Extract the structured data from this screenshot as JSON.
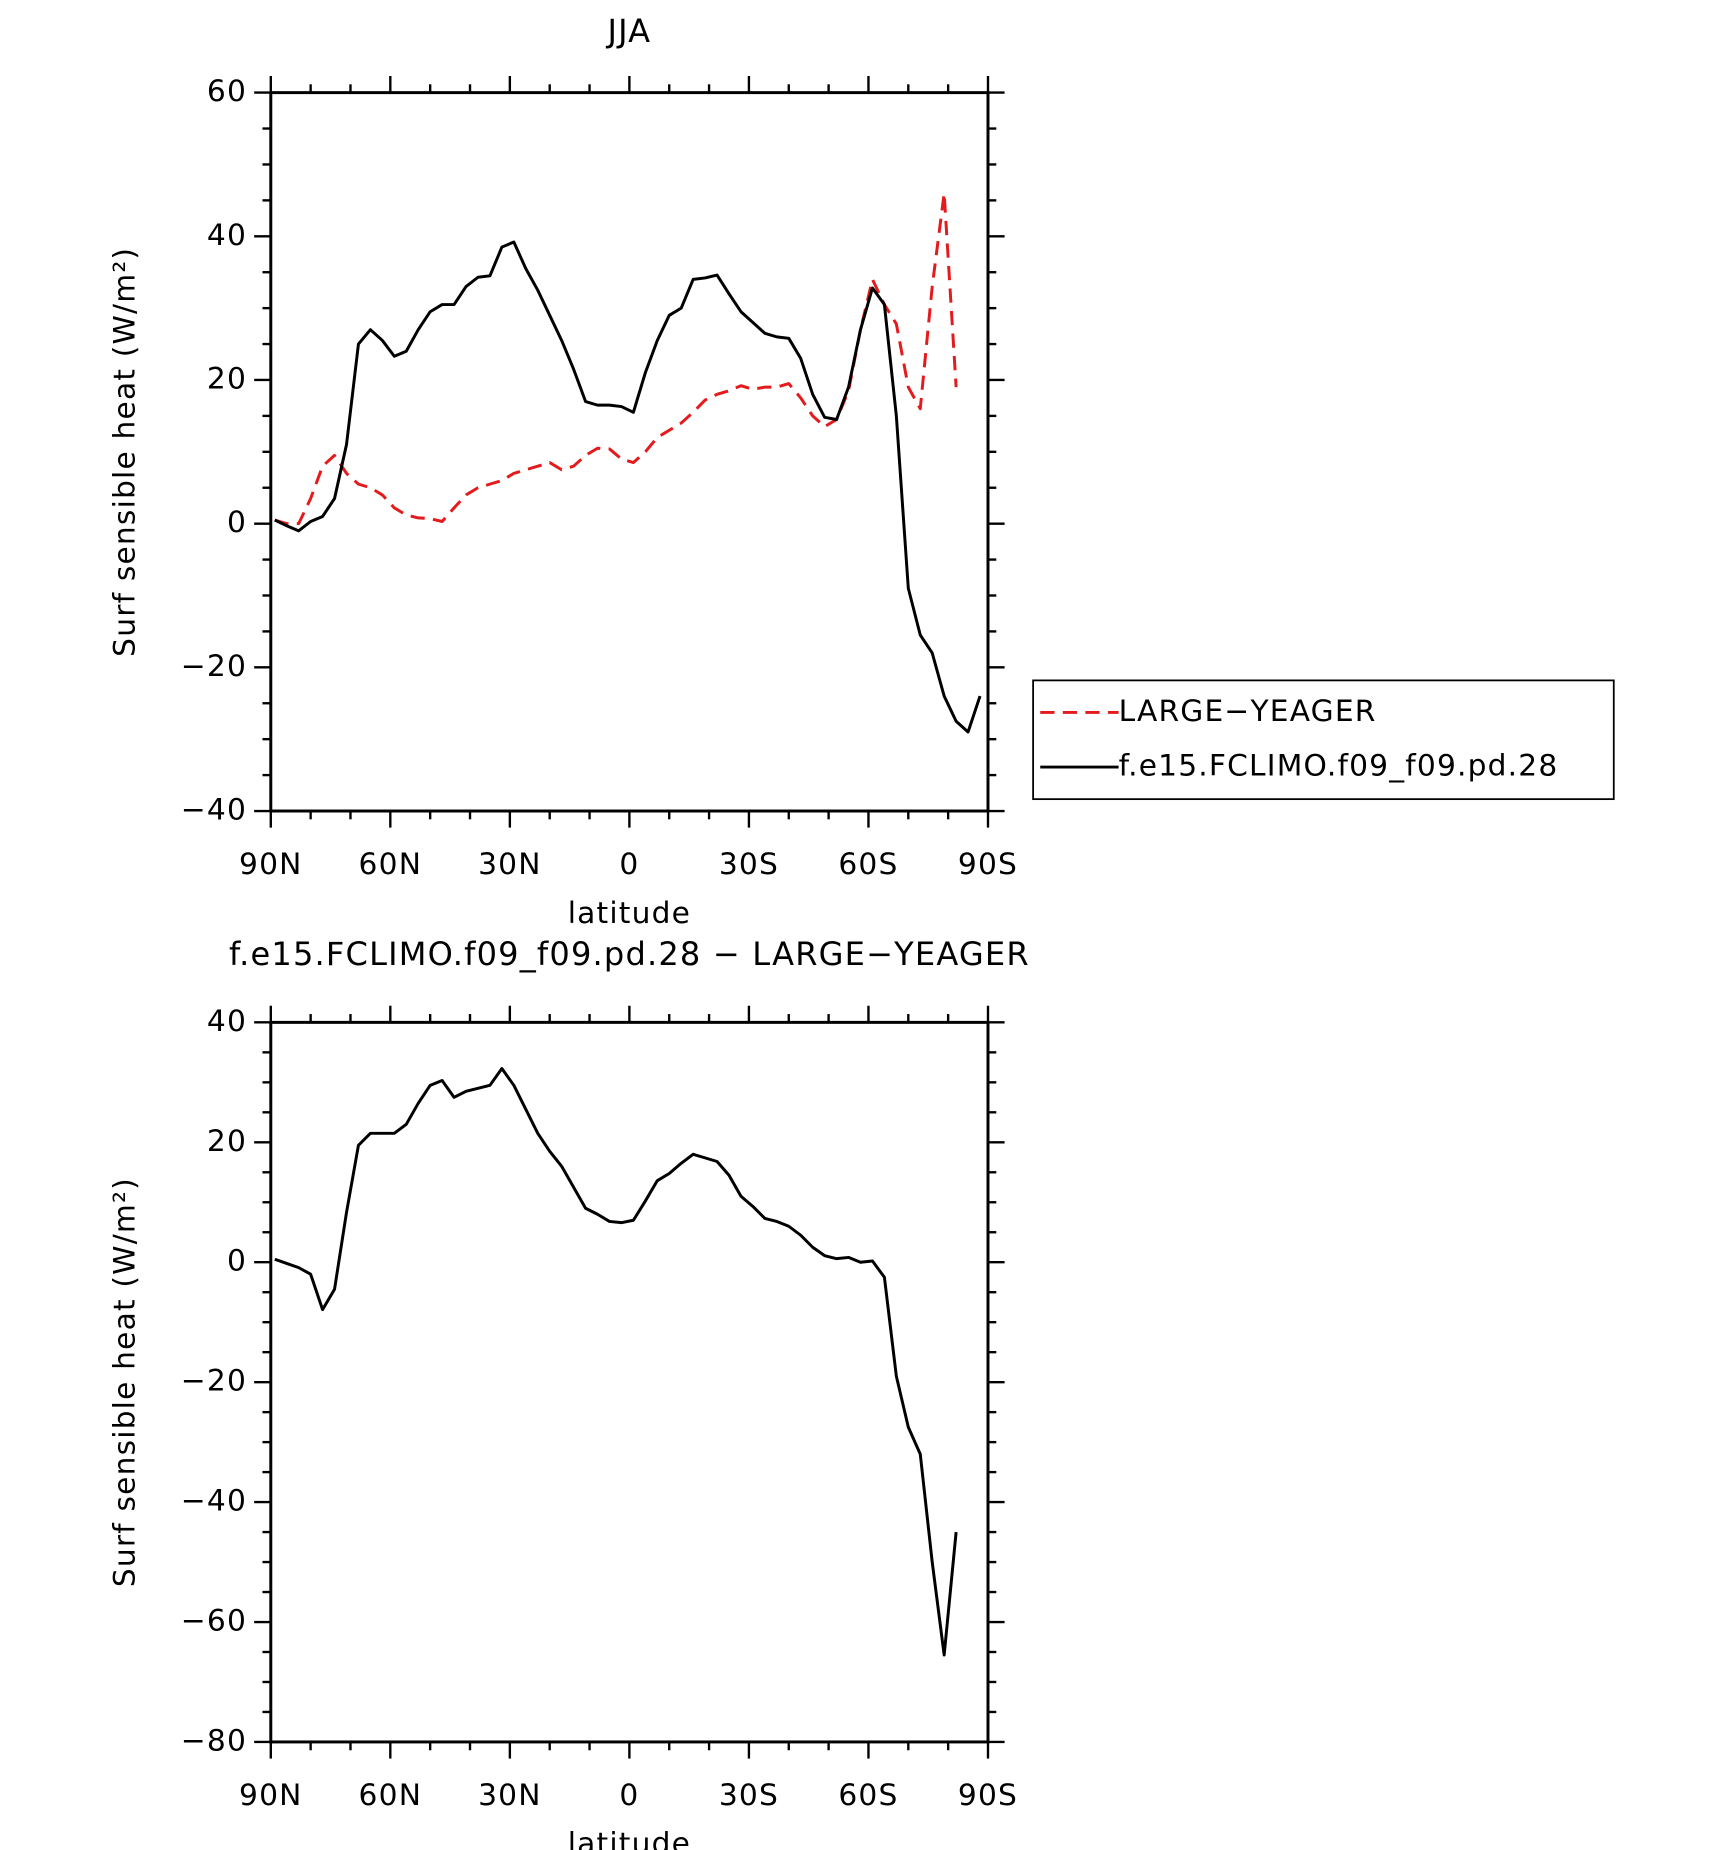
{
  "chart_data": [
    {
      "type": "line",
      "title": "JJA",
      "xlabel": "latitude",
      "ylabel": "Surf sensible heat (W/m²)",
      "x": [
        89,
        86,
        83,
        80,
        77,
        74,
        71,
        68,
        65,
        62,
        59,
        56,
        53,
        50,
        47,
        44,
        41,
        38,
        35,
        32,
        29,
        26,
        23,
        20,
        17,
        14,
        11,
        8,
        5,
        2,
        -1,
        -4,
        -7,
        -10,
        -13,
        -16,
        -19,
        -22,
        -25,
        -28,
        -31,
        -34,
        -37,
        -40,
        -43,
        -46,
        -49,
        -52,
        -55,
        -58,
        -61,
        -64,
        -67,
        -70,
        -73,
        -76,
        -79,
        -82,
        -85,
        -88
      ],
      "series": [
        {
          "name": "LARGE−YEAGER",
          "color": "#e41a1c",
          "dash": true,
          "values": [
            0.5,
            0,
            0,
            3.5,
            8,
            9.5,
            7,
            5.5,
            5,
            4,
            2.2,
            1.2,
            0.8,
            0.7,
            0.3,
            2.2,
            4,
            5,
            5.5,
            6,
            7,
            7.5,
            8,
            8.5,
            7.5,
            8,
            9.5,
            10.5,
            10.4,
            9,
            8.5,
            10,
            12,
            13,
            14,
            15.5,
            17.2,
            18,
            18.5,
            19.2,
            18.7,
            19,
            19,
            19.5,
            17.5,
            15,
            13.5,
            14.5,
            18.5,
            27,
            34,
            30.5,
            27.8,
            19,
            16,
            33,
            46,
            19,
            null,
            null
          ]
        },
        {
          "name": "f.e15.FCLIMO.f09_f09.pd.28",
          "color": "#000000",
          "dash": false,
          "values": [
            0.5,
            -0.3,
            -1,
            0.3,
            1,
            3.5,
            11,
            25,
            27,
            25.5,
            23.3,
            24,
            27,
            29.5,
            30.5,
            30.5,
            33,
            34.3,
            34.5,
            38.5,
            39.2,
            35.5,
            32.5,
            29,
            25.5,
            21.5,
            17,
            16.5,
            16.5,
            16.3,
            15.5,
            21,
            25.5,
            29,
            30,
            34,
            34.2,
            34.6,
            32,
            29.5,
            28,
            26.5,
            26,
            25.8,
            23,
            18,
            14.8,
            14.5,
            19,
            27,
            32.8,
            30.5,
            15,
            -9,
            -15.5,
            -18,
            -24,
            -27.5,
            -29,
            -24
          ]
        }
      ],
      "xlim": [
        90,
        -90
      ],
      "xticks": [
        {
          "value": 90,
          "label": "90N"
        },
        {
          "value": 60,
          "label": "60N"
        },
        {
          "value": 30,
          "label": "30N"
        },
        0,
        {
          "value": -30,
          "label": "30S"
        },
        {
          "value": -60,
          "label": "60S"
        },
        {
          "value": -90,
          "label": "90S"
        }
      ],
      "xminorticks": [
        80,
        70,
        50,
        40,
        20,
        10,
        -10,
        -20,
        -40,
        -50,
        -70,
        -80
      ],
      "ylim": [
        -40,
        60
      ],
      "yticks": [
        {
          "value": -40,
          "label": "−40"
        },
        {
          "value": -20,
          "label": "−20"
        },
        0,
        20,
        40,
        60
      ],
      "yminorticks": [
        -35,
        -30,
        -25,
        -15,
        -10,
        -5,
        5,
        10,
        15,
        25,
        30,
        35,
        45,
        50,
        55
      ],
      "legend": "right"
    },
    {
      "type": "line",
      "title": "f.e15.FCLIMO.f09_f09.pd.28 − LARGE−YEAGER",
      "xlabel": "latitude",
      "ylabel": "Surf sensible heat (W/m²)",
      "x": [
        89,
        86,
        83,
        80,
        77,
        74,
        71,
        68,
        65,
        62,
        59,
        56,
        53,
        50,
        47,
        44,
        41,
        38,
        35,
        32,
        29,
        26,
        23,
        20,
        17,
        14,
        11,
        8,
        5,
        2,
        -1,
        -4,
        -7,
        -10,
        -13,
        -16,
        -19,
        -22,
        -25,
        -28,
        -31,
        -34,
        -37,
        -40,
        -43,
        -46,
        -49,
        -52,
        -55,
        -58,
        -61,
        -64,
        -67,
        -70,
        -73,
        -76,
        -79,
        -82,
        -85,
        -88
      ],
      "series": [
        {
          "color": "#000000",
          "dash": false,
          "values": [
            0.5,
            -0.2,
            -0.9,
            -2,
            -7.9,
            -4.5,
            8.3,
            19.5,
            21.5,
            21.5,
            21.5,
            23,
            26.5,
            29.5,
            30.3,
            27.5,
            28.5,
            29,
            29.5,
            32.3,
            29.5,
            25.5,
            21.5,
            18.5,
            16,
            12.5,
            9,
            8,
            6.8,
            6.6,
            7,
            10.2,
            13.6,
            14.8,
            16.5,
            18,
            17.4,
            16.8,
            14.5,
            11,
            9.3,
            7.3,
            6.8,
            6,
            4.5,
            2.5,
            1.1,
            0.6,
            0.8,
            0,
            0.2,
            -2.5,
            -19,
            -27.5,
            -32,
            -50,
            -65.5,
            -45,
            null,
            null
          ]
        }
      ],
      "xlim": [
        90,
        -90
      ],
      "xticks": [
        {
          "value": 90,
          "label": "90N"
        },
        {
          "value": 60,
          "label": "60N"
        },
        {
          "value": 30,
          "label": "30N"
        },
        0,
        {
          "value": -30,
          "label": "30S"
        },
        {
          "value": -60,
          "label": "60S"
        },
        {
          "value": -90,
          "label": "90S"
        }
      ],
      "xminorticks": [
        80,
        70,
        50,
        40,
        20,
        10,
        -10,
        -20,
        -40,
        -50,
        -70,
        -80
      ],
      "ylim": [
        -80,
        40
      ],
      "yticks": [
        {
          "value": -80,
          "label": "−80"
        },
        {
          "value": -60,
          "label": "−60"
        },
        {
          "value": -40,
          "label": "−40"
        },
        {
          "value": -20,
          "label": "−20"
        },
        0,
        20,
        40
      ],
      "yminorticks": [
        -75,
        -70,
        -65,
        -55,
        -50,
        -45,
        -35,
        -30,
        -25,
        -15,
        -10,
        -5,
        5,
        10,
        15,
        25,
        30,
        35
      ]
    }
  ]
}
